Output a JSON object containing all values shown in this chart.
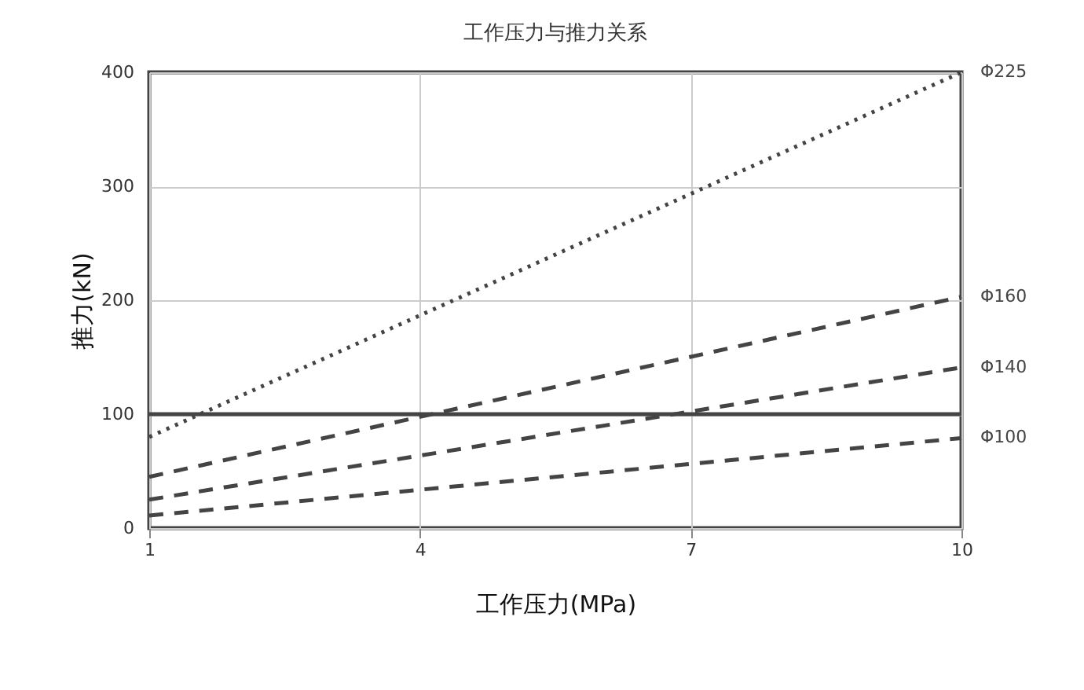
{
  "chart_data": {
    "type": "line",
    "title": "工作压力与推力关系",
    "xlabel": "工作压力(MPa)",
    "ylabel": "推力(kN)",
    "x": [
      1,
      10
    ],
    "series": [
      {
        "name": "Φ225",
        "color": "#444444",
        "line_style": "dotted",
        "values": [
          80,
          400
        ]
      },
      {
        "name": "Φ160",
        "color": "#444444",
        "line_style": "dashed",
        "values": [
          45,
          203
        ]
      },
      {
        "name": "Φ140",
        "color": "#444444",
        "line_style": "dashed",
        "values": [
          25,
          141
        ]
      },
      {
        "name": "Φ100",
        "color": "#444444",
        "line_style": "dashed",
        "values": [
          11,
          79
        ]
      }
    ],
    "xlim": [
      1,
      10
    ],
    "xticks": [
      1,
      4,
      7,
      10
    ],
    "ylim": [
      0,
      400
    ],
    "yticks": [
      0,
      100,
      200,
      300,
      400
    ],
    "ref_lines": [
      {
        "axis": "y",
        "value": 100,
        "color": "#444444",
        "line_style": "solid"
      }
    ],
    "grid": true,
    "legend": false,
    "marker": "none"
  }
}
